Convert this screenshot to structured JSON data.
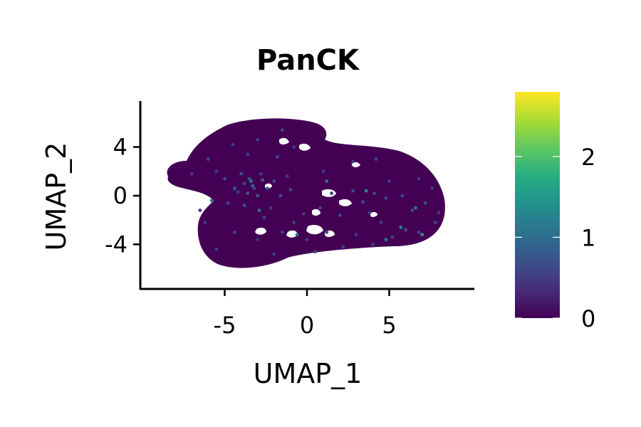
{
  "chart_data": {
    "type": "scatter",
    "title": "PanCK",
    "xlabel": "UMAP_1",
    "ylabel": "UMAP_2",
    "xlim": [
      -10,
      10
    ],
    "ylim": [
      -8,
      8
    ],
    "x_ticks": [
      -5,
      0,
      5
    ],
    "x_tick_labels": [
      "-5",
      "0",
      "5"
    ],
    "y_ticks": [
      4,
      0,
      -4
    ],
    "y_tick_labels": [
      "4",
      "0",
      "-4"
    ],
    "grid": false,
    "legend": "none",
    "colorbar": {
      "colormap": "viridis",
      "min": 0,
      "max": 2.8,
      "ticks": [
        0,
        1,
        2
      ],
      "tick_labels": [
        "0",
        "1",
        "2"
      ],
      "colors": [
        "#440154",
        "#472c7a",
        "#3b518b",
        "#2c718e",
        "#21908d",
        "#27ad81",
        "#5cc863",
        "#aadc32",
        "#fde725"
      ]
    },
    "series": [
      {
        "values": "PanCK expression per cell",
        "points": [
          [
            -3.8,
            1.0,
            0.6
          ],
          [
            -3.5,
            1.4,
            0.7
          ],
          [
            -3.2,
            0.6,
            0.6
          ],
          [
            -4.2,
            0.3,
            0.5
          ],
          [
            -2.8,
            1.8,
            0.5
          ],
          [
            -5.5,
            2.0,
            0.5
          ],
          [
            -4.8,
            -0.6,
            0.6
          ],
          [
            -2.2,
            -1.0,
            0.5
          ],
          [
            -1.0,
            0.5,
            0.6
          ],
          [
            -0.2,
            -1.5,
            0.5
          ],
          [
            0.8,
            -1.0,
            0.6
          ],
          [
            1.5,
            0.2,
            0.5
          ],
          [
            2.8,
            0.4,
            0.6
          ],
          [
            3.4,
            -0.5,
            0.7
          ],
          [
            4.1,
            0.2,
            0.6
          ],
          [
            5.0,
            1.2,
            0.5
          ],
          [
            5.8,
            0.0,
            0.6
          ],
          [
            6.4,
            -1.2,
            0.7
          ],
          [
            7.2,
            -0.6,
            0.6
          ],
          [
            7.6,
            0.6,
            0.5
          ],
          [
            6.0,
            -2.8,
            0.7
          ],
          [
            5.2,
            -3.4,
            0.6
          ],
          [
            6.8,
            -3.0,
            0.6
          ],
          [
            4.5,
            -2.2,
            0.5
          ],
          [
            3.0,
            -3.2,
            0.5
          ],
          [
            1.2,
            -3.0,
            0.6
          ],
          [
            0.0,
            -3.6,
            0.5
          ],
          [
            -1.5,
            -3.0,
            0.6
          ],
          [
            -3.0,
            -3.6,
            0.5
          ],
          [
            -4.4,
            -3.0,
            0.6
          ],
          [
            -5.5,
            -4.4,
            0.5
          ],
          [
            -2.0,
            -4.8,
            0.5
          ],
          [
            0.5,
            -4.6,
            0.6
          ],
          [
            2.2,
            -4.2,
            0.5
          ],
          [
            4.0,
            -4.0,
            0.6
          ],
          [
            -6.0,
            3.0,
            0.6
          ],
          [
            -3.6,
            3.4,
            0.5
          ],
          [
            -1.8,
            3.2,
            0.6
          ],
          [
            -0.8,
            4.0,
            0.5
          ],
          [
            -3.0,
            4.6,
            0.5
          ],
          [
            -1.5,
            5.4,
            0.6
          ],
          [
            -4.5,
            4.2,
            0.5
          ],
          [
            2.8,
            2.8,
            0.5
          ],
          [
            4.2,
            3.0,
            0.6
          ],
          [
            1.0,
            2.0,
            0.5
          ],
          [
            -2.6,
            -1.8,
            0.6
          ],
          [
            -0.8,
            -2.2,
            0.5
          ],
          [
            2.0,
            -1.6,
            0.6
          ],
          [
            3.8,
            -1.4,
            0.5
          ],
          [
            7.8,
            -2.2,
            0.6
          ],
          [
            8.0,
            -1.4,
            0.5
          ],
          [
            -6.2,
            -2.2,
            0.5
          ],
          [
            -5.0,
            1.4,
            0.6
          ],
          [
            -7.0,
            1.8,
            0.5
          ],
          [
            -1.2,
            1.6,
            0.5
          ],
          [
            -6.5,
            -1.2,
            0.5
          ],
          [
            4.8,
            -0.2,
            0.6
          ],
          [
            6.8,
            1.4,
            0.5
          ],
          [
            -3.4,
            1.2,
            1.2
          ],
          [
            3.6,
            0.4,
            1.3
          ],
          [
            5.7,
            -2.6,
            1.3
          ],
          [
            6.6,
            -1.0,
            1.2
          ],
          [
            -2.9,
            -1.2,
            1.1
          ],
          [
            1.2,
            1.2,
            1.1
          ],
          [
            7.0,
            -3.2,
            1.4
          ],
          [
            4.8,
            -3.6,
            1.1
          ],
          [
            -5.8,
            -0.4,
            1.2
          ],
          [
            -0.6,
            -3.2,
            1.1
          ],
          [
            -3.3,
            0.8,
            0.9
          ],
          [
            -2.7,
            1.3,
            0.9
          ],
          [
            -3.6,
            0.2,
            0.8
          ],
          [
            -3.0,
            0.0,
            0.8
          ],
          [
            -2.4,
            0.6,
            0.8
          ],
          [
            -4.0,
            1.8,
            0.7
          ],
          [
            -4.4,
            0.6,
            0.8
          ],
          [
            -2.0,
            1.2,
            0.7
          ],
          [
            -3.8,
            -0.8,
            0.7
          ],
          [
            -1.6,
            0.0,
            0.7
          ]
        ]
      }
    ]
  }
}
